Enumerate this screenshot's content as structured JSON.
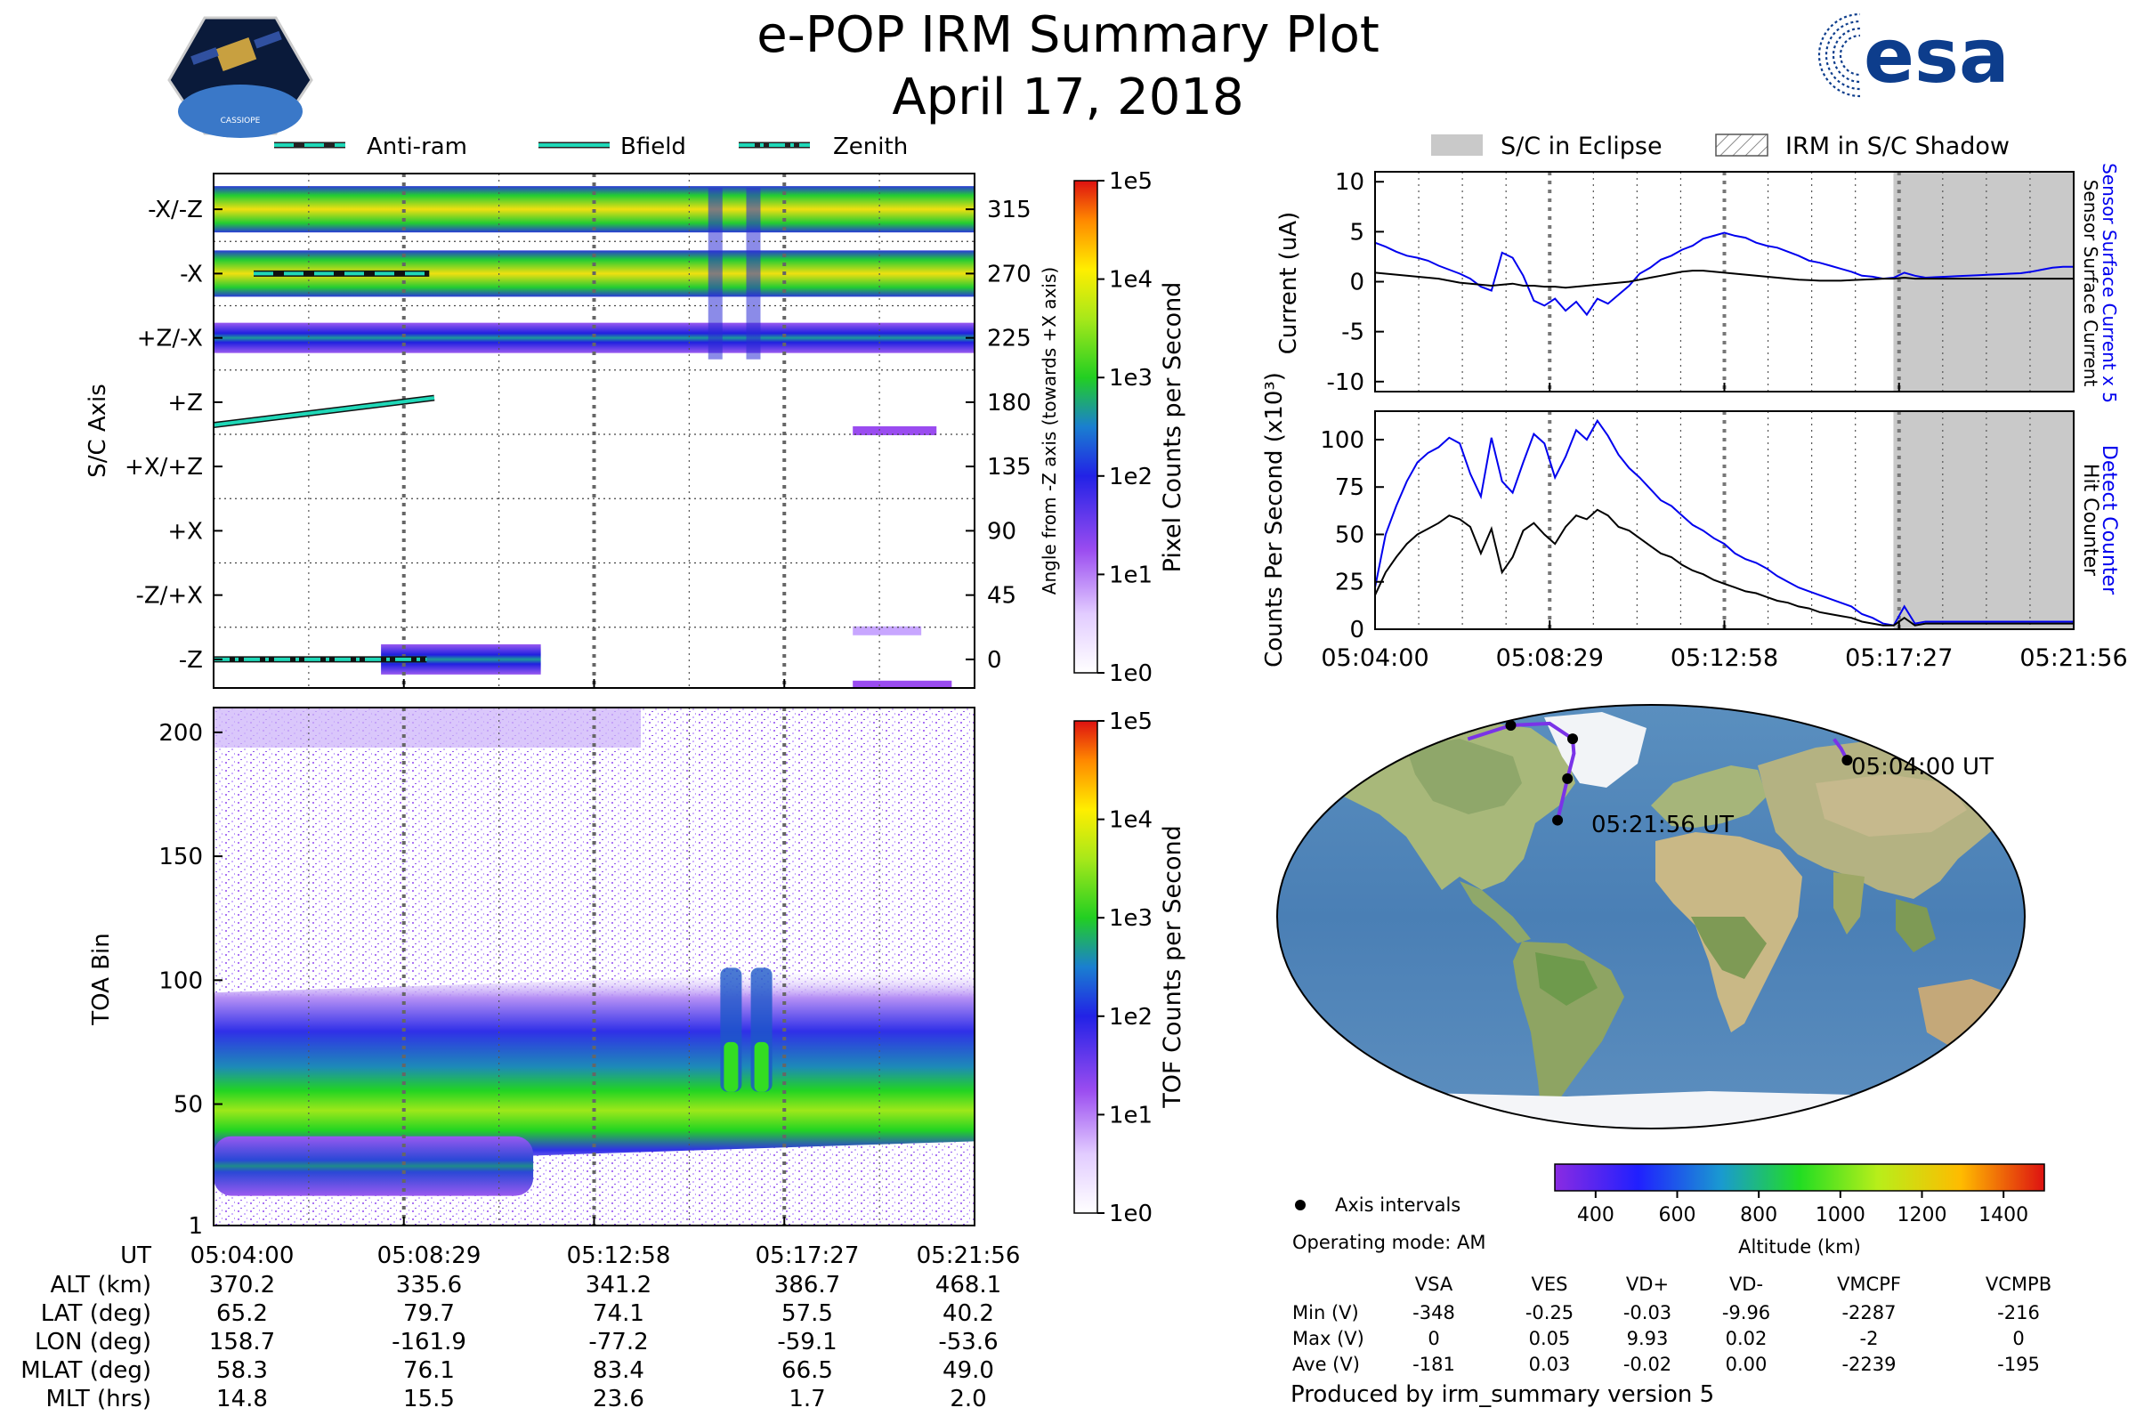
{
  "header": {
    "title": "e-POP IRM Summary Plot",
    "date": "April 17, 2018",
    "left_logo_text": "CASSIOPE",
    "right_logo_text": "esa"
  },
  "colors": {
    "sensor_line": "#0000ee",
    "counter_line": "#000000",
    "eclipse_fill": "#c9c9c9",
    "trace_color": "#7a33e8",
    "legend_teal": "#1fd8b8"
  },
  "chart_data": [
    {
      "id": "sc_axis",
      "type": "heatmap",
      "ylabel": "S/C Axis",
      "right_ylabel": "Angle from -Z axis (towards +X axis)",
      "yticks_left": [
        "-X/-Z",
        "-X",
        "+Z/-X",
        "+Z",
        "+X/+Z",
        "+X",
        "-Z/+X",
        "-Z"
      ],
      "yticks_right": [
        "315",
        "270",
        "225",
        "180",
        "135",
        "90",
        "45",
        "0"
      ],
      "ylim": [
        -20,
        340
      ],
      "colorbar": {
        "label": "Pixel Counts per Second",
        "scale": "log",
        "ticks": [
          "1e0",
          "1e1",
          "1e2",
          "1e3",
          "1e4",
          "1e5"
        ]
      },
      "legend": [
        "Anti-ram",
        "Bfield",
        "Zenith"
      ],
      "bands": [
        {
          "angle": 315,
          "t0": 0.0,
          "t1": 1.0,
          "level": 3.3
        },
        {
          "angle": 270,
          "t0": 0.0,
          "t1": 1.0,
          "level": 3.2
        },
        {
          "angle": 225,
          "t0": 0.0,
          "t1": 1.0,
          "level": 2.2
        },
        {
          "angle": 160,
          "t0": 0.84,
          "t1": 0.95,
          "level": 1.6
        },
        {
          "angle": 20,
          "t0": 0.84,
          "t1": 0.93,
          "level": 0.9
        },
        {
          "angle": 0,
          "t0": 0.22,
          "t1": 0.43,
          "level": 2.1
        },
        {
          "angle": -18,
          "t0": 0.84,
          "t1": 0.97,
          "level": 1.4
        }
      ],
      "anti_ram": {
        "angle": 270,
        "t0": 0.0,
        "t1": 0.26
      },
      "bfield": {
        "angle_start": 164,
        "angle_end": 183,
        "t0": 0.0,
        "t1": 0.29
      },
      "zenith": {
        "angle": 0,
        "t0": 0.0,
        "t1": 0.28
      }
    },
    {
      "id": "toa",
      "type": "heatmap",
      "ylabel": "TOA Bin",
      "yticks": [
        "1",
        "50",
        "100",
        "150",
        "200"
      ],
      "ylim": [
        1,
        210
      ],
      "colorbar": {
        "label": "TOF Counts per Second",
        "scale": "log",
        "ticks": [
          "1e0",
          "1e1",
          "1e2",
          "1e3",
          "1e4",
          "1e5"
        ]
      },
      "main_band": {
        "center_start": 60,
        "center_end": 70,
        "width_core": 10,
        "width_halo": 35
      },
      "lower_band": {
        "center": 25,
        "t1": 0.42,
        "width": 6
      },
      "spikes_t": [
        0.68,
        0.72
      ]
    },
    {
      "id": "current",
      "type": "line",
      "ylabel": "Current (uA)",
      "right_labels": [
        "Sensor Surface Current x 5",
        "Sensor Surface Current"
      ],
      "yticks": [
        "10",
        "5",
        "0",
        "-5",
        "-10"
      ],
      "ylim": [
        -11,
        11
      ],
      "legend": [
        "S/C in Eclipse",
        "IRM in S/C Shadow"
      ],
      "eclipse_start": 0.742,
      "series": [
        {
          "name": "Sensor Surface Current x 5",
          "values": [
            3.9,
            3.5,
            3.0,
            2.6,
            2.4,
            2.1,
            1.6,
            1.2,
            0.8,
            0.3,
            -0.5,
            -0.9,
            2.9,
            2.4,
            0.6,
            -1.9,
            -2.4,
            -1.7,
            -2.9,
            -2.0,
            -3.3,
            -1.7,
            -2.2,
            -1.3,
            -0.4,
            0.8,
            1.4,
            2.2,
            2.6,
            3.2,
            3.6,
            4.3,
            4.6,
            4.9,
            4.6,
            4.4,
            3.9,
            3.6,
            3.4,
            3.0,
            2.6,
            2.1,
            1.9,
            1.6,
            1.3,
            1.0,
            0.6,
            0.5,
            0.3,
            0.4,
            0.9,
            0.6,
            0.4,
            0.45,
            0.5,
            0.55,
            0.6,
            0.65,
            0.7,
            0.75,
            0.8,
            0.85,
            1.0,
            1.2,
            1.4,
            1.5,
            1.5
          ]
        },
        {
          "name": "Sensor Surface Current",
          "values": [
            0.9,
            0.8,
            0.7,
            0.6,
            0.5,
            0.4,
            0.3,
            0.1,
            -0.1,
            -0.2,
            -0.3,
            -0.4,
            -0.3,
            -0.2,
            -0.4,
            -0.4,
            -0.5,
            -0.5,
            -0.6,
            -0.5,
            -0.4,
            -0.3,
            -0.2,
            -0.1,
            0.0,
            0.2,
            0.4,
            0.6,
            0.8,
            1.0,
            1.1,
            1.1,
            1.0,
            0.9,
            0.8,
            0.7,
            0.6,
            0.5,
            0.4,
            0.3,
            0.2,
            0.15,
            0.1,
            0.1,
            0.1,
            0.15,
            0.2,
            0.25,
            0.3,
            0.3,
            0.4,
            0.3,
            0.3,
            0.3,
            0.3,
            0.3,
            0.3,
            0.3,
            0.3,
            0.3,
            0.3,
            0.3,
            0.3,
            0.3,
            0.3,
            0.3,
            0.3
          ]
        }
      ]
    },
    {
      "id": "counts",
      "type": "line",
      "ylabel": "Counts Per Second (x10³)",
      "right_labels": [
        "Detect Counter",
        "Hit Counter"
      ],
      "yticks": [
        "100",
        "75",
        "50",
        "25",
        "0"
      ],
      "ylim": [
        0,
        115
      ],
      "xticks": [
        "05:04:00",
        "05:08:29",
        "05:12:58",
        "05:17:27",
        "05:21:56"
      ],
      "eclipse_start": 0.742,
      "series": [
        {
          "name": "Detect Counter",
          "values": [
            22,
            50,
            65,
            78,
            88,
            93,
            96,
            101,
            98,
            82,
            70,
            101,
            78,
            72,
            88,
            103,
            98,
            80,
            91,
            105,
            100,
            110,
            102,
            92,
            85,
            80,
            74,
            68,
            65,
            60,
            55,
            52,
            48,
            45,
            40,
            37,
            35,
            32,
            28,
            25,
            22,
            20,
            18,
            16,
            14,
            12,
            8,
            6,
            3,
            2,
            12,
            3,
            4,
            4,
            4,
            4,
            4,
            4,
            4,
            4,
            4,
            4,
            4,
            4,
            4,
            4,
            4
          ]
        },
        {
          "name": "Hit Counter",
          "values": [
            18,
            30,
            38,
            45,
            50,
            53,
            56,
            60,
            58,
            54,
            40,
            53,
            30,
            38,
            52,
            56,
            50,
            45,
            54,
            60,
            58,
            63,
            60,
            54,
            52,
            48,
            44,
            40,
            38,
            34,
            31,
            29,
            26,
            24,
            22,
            20,
            19,
            17,
            15,
            14,
            12,
            11,
            9,
            8,
            7,
            6,
            4,
            3,
            2,
            2,
            6,
            2,
            3,
            3,
            3,
            3,
            3,
            3,
            3,
            3,
            3,
            3,
            3,
            3,
            3,
            3,
            3
          ]
        }
      ]
    },
    {
      "id": "map",
      "type": "scatter",
      "labels": [
        "05:04:00 UT",
        "05:21:56 UT"
      ],
      "legend": "Axis intervals",
      "track_segments": [
        [
          [
            158.7,
            65.2
          ],
          [
            170,
            70
          ],
          [
            180,
            74
          ]
        ],
        [
          [
            -180,
            74
          ],
          [
            -161.9,
            79.7
          ],
          [
            -120,
            80.5
          ],
          [
            -77.2,
            74.1
          ],
          [
            -66,
            68
          ],
          [
            -59.1,
            57.5
          ],
          [
            -53.6,
            40.2
          ]
        ]
      ],
      "points": [
        [
          158.7,
          65.2
        ],
        [
          -161.9,
          79.7
        ],
        [
          -77.2,
          74.1
        ],
        [
          -59.1,
          57.5
        ],
        [
          -53.6,
          40.2
        ]
      ],
      "colorbar": {
        "label": "Altitude (km)",
        "ticks": [
          "400",
          "600",
          "800",
          "1000",
          "1200",
          "1400"
        ],
        "range": [
          300,
          1500
        ]
      }
    }
  ],
  "table": {
    "columns": [
      "UT",
      "ALT (km)",
      "LAT (deg)",
      "LON (deg)",
      "MLAT (deg)",
      "MLT (hrs)"
    ],
    "rows": [
      [
        "05:04:00",
        "05:08:29",
        "05:12:58",
        "05:17:27",
        "05:21:56"
      ],
      [
        "370.2",
        "335.6",
        "341.2",
        "386.7",
        "468.1"
      ],
      [
        "65.2",
        "79.7",
        "74.1",
        "57.5",
        "40.2"
      ],
      [
        "158.7",
        "-161.9",
        "-77.2",
        "-59.1",
        "-53.6"
      ],
      [
        "58.3",
        "76.1",
        "83.4",
        "66.5",
        "49.0"
      ],
      [
        "14.8",
        "15.5",
        "23.6",
        "1.7",
        "2.0"
      ]
    ]
  },
  "voltage": {
    "operating_mode": "Operating mode: AM",
    "headers": [
      "VSA",
      "VES",
      "VD+",
      "VD-",
      "VMCPF",
      "VCMPB"
    ],
    "rows": [
      {
        "label": "Min (V)",
        "values": [
          "-348",
          "-0.25",
          "-0.03",
          "-9.96",
          "-2287",
          "-216"
        ]
      },
      {
        "label": "Max (V)",
        "values": [
          "0",
          "0.05",
          "9.93",
          "0.02",
          "-2",
          "0"
        ]
      },
      {
        "label": "Ave (V)",
        "values": [
          "-181",
          "0.03",
          "-0.02",
          "0.00",
          "-2239",
          "-195"
        ]
      }
    ]
  },
  "footer": "Produced by irm_summary version 5"
}
